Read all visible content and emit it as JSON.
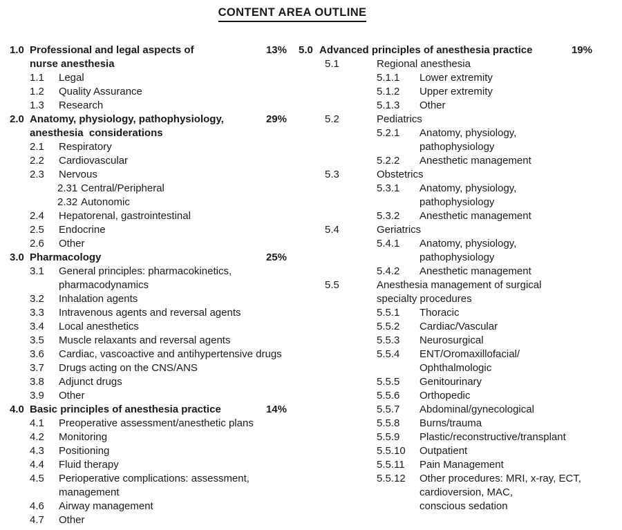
{
  "page_title": "CONTENT AREA OUTLINE",
  "colors": {
    "text": "#1a1a1c",
    "background": "#ffffff",
    "underline": "#151517"
  },
  "outline": {
    "left": [
      {
        "number": "1.0",
        "heading": "Professional and legal aspects of\nnurse anesthesia",
        "percent": "13%",
        "items": [
          {
            "number": "1.1",
            "label": "Legal"
          },
          {
            "number": "1.2",
            "label": "Quality Assurance"
          },
          {
            "number": "1.3",
            "label": "Research"
          }
        ]
      },
      {
        "number": "2.0",
        "heading": "Anatomy, physiology, pathophysiology,\nanesthesia  considerations",
        "percent": "29%",
        "items": [
          {
            "number": "2.1",
            "label": "Respiratory"
          },
          {
            "number": "2.2",
            "label": "Cardiovascular"
          },
          {
            "number": "2.3",
            "label": "Nervous"
          },
          {
            "number": "2.31",
            "label": "Central/Peripheral"
          },
          {
            "number": "2.32",
            "label": "Autonomic"
          },
          {
            "number": "2.4",
            "label": "Hepatorenal, gastrointestinal"
          },
          {
            "number": "2.5",
            "label": "Endocrine"
          },
          {
            "number": "2.6",
            "label": "Other"
          }
        ]
      },
      {
        "number": "3.0",
        "heading": "Pharmacology",
        "percent": "25%",
        "items": [
          {
            "number": "3.1",
            "label": "General principles: pharmacokinetics,\npharmacodynamics"
          },
          {
            "number": "3.2",
            "label": "Inhalation agents"
          },
          {
            "number": "3.3",
            "label": "Intravenous agents and reversal agents"
          },
          {
            "number": "3.4",
            "label": "Local anesthetics"
          },
          {
            "number": "3.5",
            "label": "Muscle relaxants and reversal agents"
          },
          {
            "number": "3.6",
            "label": "Cardiac, vascoactive and antihypertensive drugs"
          },
          {
            "number": "3.7",
            "label": "Drugs acting on the CNS/ANS"
          },
          {
            "number": "3.8",
            "label": "Adjunct drugs"
          },
          {
            "number": "3.9",
            "label": "Other"
          }
        ]
      },
      {
        "number": "4.0",
        "heading": "Basic principles of anesthesia practice",
        "percent": "14%",
        "items": [
          {
            "number": "4.1",
            "label": "Preoperative assessment/anesthetic plans"
          },
          {
            "number": "4.2",
            "label": "Monitoring"
          },
          {
            "number": "4.3",
            "label": "Positioning"
          },
          {
            "number": "4.4",
            "label": "Fluid therapy"
          },
          {
            "number": "4.5",
            "label": "Perioperative complications: assessment,\nmanagement"
          },
          {
            "number": "4.6",
            "label": "Airway management"
          },
          {
            "number": "4.7",
            "label": "Other"
          }
        ]
      }
    ],
    "right": [
      {
        "number": "5.0",
        "heading": "Advanced principles of anesthesia practice",
        "percent": "19%",
        "items": [
          {
            "number": "5.1",
            "label": "Regional anesthesia"
          },
          {
            "number": "5.1.1",
            "label": "Lower extremity"
          },
          {
            "number": "5.1.2",
            "label": "Upper extremity"
          },
          {
            "number": "5.1.3",
            "label": "Other"
          },
          {
            "number": "5.2",
            "label": "Pediatrics"
          },
          {
            "number": "5.2.1",
            "label": "Anatomy, physiology,\npathophysiology"
          },
          {
            "number": "5.2.2",
            "label": "Anesthetic management"
          },
          {
            "number": "5.3",
            "label": "Obstetrics"
          },
          {
            "number": "5.3.1",
            "label": "Anatomy, physiology,\npathophysiology"
          },
          {
            "number": "5.3.2",
            "label": "Anesthetic management"
          },
          {
            "number": "5.4",
            "label": "Geriatrics"
          },
          {
            "number": "5.4.1",
            "label": "Anatomy, physiology,\npathophysiology"
          },
          {
            "number": "5.4.2",
            "label": "Anesthetic management"
          },
          {
            "number": "5.5",
            "label": "Anesthesia management of surgical\nspecialty procedures"
          },
          {
            "number": "5.5.1",
            "label": "Thoracic"
          },
          {
            "number": "5.5.2",
            "label": "Cardiac/Vascular"
          },
          {
            "number": "5.5.3",
            "label": "Neurosurgical"
          },
          {
            "number": "5.5.4",
            "label": "ENT/Oromaxillofacial/\nOphthalmologic"
          },
          {
            "number": "5.5.5",
            "label": "Genitourinary"
          },
          {
            "number": "5.5.6",
            "label": "Orthopedic"
          },
          {
            "number": "5.5.7",
            "label": "Abdominal/gynecological"
          },
          {
            "number": "5.5.8",
            "label": "Burns/trauma"
          },
          {
            "number": "5.5.9",
            "label": "Plastic/reconstructive/transplant"
          },
          {
            "number": "5.5.10",
            "label": "Outpatient"
          },
          {
            "number": "5.5.11",
            "label": "Pain Management"
          },
          {
            "number": "5.5.12",
            "label": "Other procedures: MRI, x-ray, ECT,\ncardioversion, MAC,\nconscious sedation"
          }
        ]
      }
    ]
  }
}
